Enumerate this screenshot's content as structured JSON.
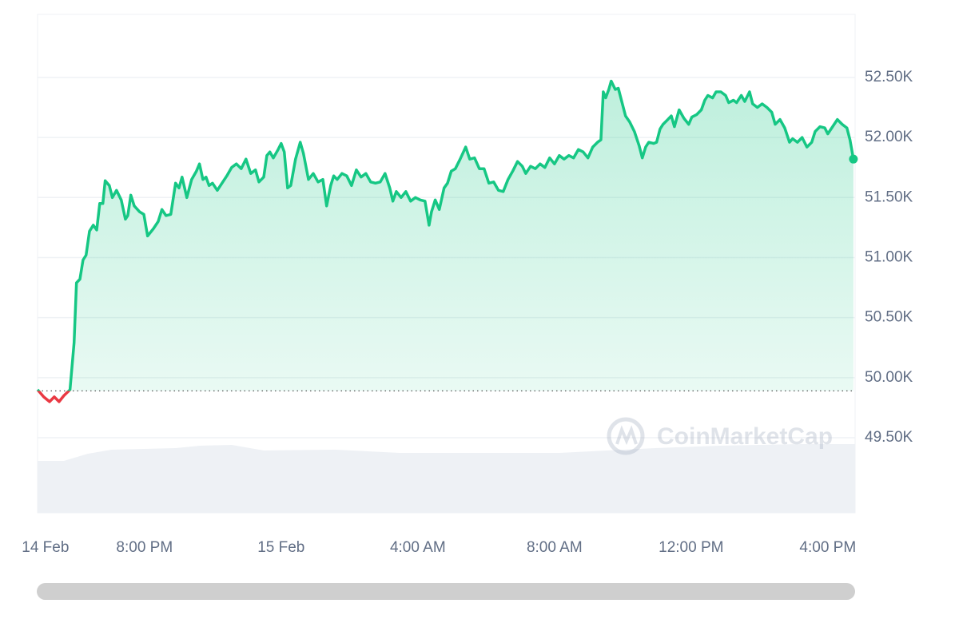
{
  "chart_data": {
    "type": "line",
    "x": [
      -7.13,
      -6.95,
      -6.78,
      -6.64,
      -6.5,
      -6.36,
      -6.18,
      -6.06,
      -5.99,
      -5.89,
      -5.8,
      -5.71,
      -5.61,
      -5.5,
      -5.4,
      -5.31,
      -5.22,
      -5.15,
      -5.03,
      -4.94,
      -4.82,
      -4.68,
      -4.56,
      -4.49,
      -4.4,
      -4.3,
      -4.14,
      -4.02,
      -3.91,
      -3.74,
      -3.6,
      -3.49,
      -3.37,
      -3.23,
      -3.09,
      -2.99,
      -2.9,
      -2.76,
      -2.62,
      -2.48,
      -2.39,
      -2.29,
      -2.2,
      -2.11,
      -2.01,
      -1.87,
      -1.73,
      -1.59,
      -1.45,
      -1.31,
      -1.17,
      -1.03,
      -0.89,
      -0.75,
      -0.65,
      -0.51,
      -0.42,
      -0.33,
      -0.23,
      -0.09,
      0,
      0.09,
      0.19,
      0.28,
      0.42,
      0.56,
      0.65,
      0.8,
      0.94,
      1.08,
      1.22,
      1.33,
      1.45,
      1.54,
      1.64,
      1.78,
      1.92,
      2.06,
      2.2,
      2.34,
      2.48,
      2.62,
      2.76,
      2.9,
      3.04,
      3.18,
      3.27,
      3.37,
      3.51,
      3.65,
      3.79,
      3.93,
      4.07,
      4.21,
      4.33,
      4.4,
      4.51,
      4.63,
      4.77,
      4.87,
      4.98,
      5.1,
      5.24,
      5.4,
      5.52,
      5.66,
      5.8,
      5.94,
      6.08,
      6.22,
      6.36,
      6.5,
      6.64,
      6.78,
      6.92,
      7.06,
      7.16,
      7.3,
      7.44,
      7.58,
      7.72,
      7.86,
      8.0,
      8.14,
      8.28,
      8.42,
      8.56,
      8.7,
      8.84,
      8.98,
      9.12,
      9.26,
      9.36,
      9.43,
      9.5,
      9.59,
      9.66,
      9.78,
      9.87,
      9.96,
      10.08,
      10.2,
      10.34,
      10.48,
      10.57,
      10.67,
      10.76,
      10.9,
      10.99,
      11.09,
      11.18,
      11.32,
      11.42,
      11.51,
      11.65,
      11.79,
      11.93,
      12.02,
      12.16,
      12.3,
      12.4,
      12.49,
      12.63,
      12.73,
      12.87,
      13.01,
      13.1,
      13.24,
      13.33,
      13.47,
      13.57,
      13.71,
      13.8,
      13.94,
      14.08,
      14.22,
      14.36,
      14.46,
      14.6,
      14.74,
      14.88,
      14.97,
      15.11,
      15.25,
      15.39,
      15.53,
      15.63,
      15.77,
      15.91,
      16.0,
      16.14,
      16.28,
      16.42,
      16.56,
      16.65,
      16.75
    ],
    "values": [
      49900,
      49840,
      49800,
      49840,
      49800,
      49850,
      49900,
      50290,
      50790,
      50820,
      50980,
      51020,
      51220,
      51270,
      51230,
      51450,
      51450,
      51640,
      51600,
      51500,
      51560,
      51480,
      51320,
      51350,
      51520,
      51430,
      51380,
      51360,
      51180,
      51240,
      51300,
      51400,
      51350,
      51360,
      51620,
      51580,
      51670,
      51500,
      51650,
      51720,
      51780,
      51650,
      51670,
      51600,
      51620,
      51560,
      51620,
      51680,
      51750,
      51780,
      51740,
      51820,
      51700,
      51730,
      51630,
      51670,
      51850,
      51880,
      51830,
      51900,
      51950,
      51880,
      51580,
      51600,
      51820,
      51960,
      51870,
      51650,
      51700,
      51630,
      51650,
      51430,
      51600,
      51680,
      51650,
      51700,
      51680,
      51600,
      51730,
      51670,
      51700,
      51630,
      51620,
      51630,
      51700,
      51580,
      51470,
      51550,
      51500,
      51550,
      51470,
      51500,
      51480,
      51470,
      51270,
      51380,
      51480,
      51400,
      51580,
      51620,
      51720,
      51740,
      51820,
      51920,
      51820,
      51830,
      51740,
      51740,
      51620,
      51630,
      51560,
      51550,
      51650,
      51720,
      51800,
      51760,
      51700,
      51760,
      51740,
      51780,
      51750,
      51830,
      51780,
      51850,
      51820,
      51850,
      51830,
      51900,
      51880,
      51830,
      51920,
      51960,
      51980,
      52380,
      52330,
      52400,
      52470,
      52400,
      52410,
      52310,
      52180,
      52130,
      52050,
      51930,
      51830,
      51920,
      51960,
      51950,
      51960,
      52070,
      52110,
      52150,
      52180,
      52090,
      52230,
      52160,
      52110,
      52170,
      52190,
      52230,
      52310,
      52350,
      52330,
      52380,
      52380,
      52350,
      52290,
      52310,
      52290,
      52350,
      52300,
      52380,
      52280,
      52250,
      52280,
      52250,
      52210,
      52110,
      52150,
      52080,
      51960,
      51990,
      51960,
      52000,
      51920,
      51960,
      52050,
      52090,
      52080,
      52030,
      52090,
      52150,
      52110,
      52080,
      51980,
      51820
    ],
    "color": "#16c784",
    "down_color": "#ea3943",
    "baseline": 49890,
    "xlim": [
      -7.13,
      16.8
    ],
    "ylim": [
      48875,
      53025
    ],
    "xticks": [
      {
        "value": -6.9,
        "label": "14 Feb"
      },
      {
        "value": -4,
        "label": "8:00 PM"
      },
      {
        "value": 0,
        "label": "15 Feb"
      },
      {
        "value": 4,
        "label": "4:00 AM"
      },
      {
        "value": 8,
        "label": "8:00 AM"
      },
      {
        "value": 12,
        "label": "12:00 PM"
      },
      {
        "value": 16,
        "label": "4:00 PM"
      }
    ],
    "yticks": [
      {
        "value": 49500,
        "label": "49.50K"
      },
      {
        "value": 50000,
        "label": "50.00K"
      },
      {
        "value": 50500,
        "label": "50.50K"
      },
      {
        "value": 51000,
        "label": "51.00K"
      },
      {
        "value": 51500,
        "label": "51.50K"
      },
      {
        "value": 52000,
        "label": "52.00K"
      },
      {
        "value": 52500,
        "label": "52.50K"
      }
    ],
    "grid": true,
    "watermark": "CoinMarketCap"
  }
}
